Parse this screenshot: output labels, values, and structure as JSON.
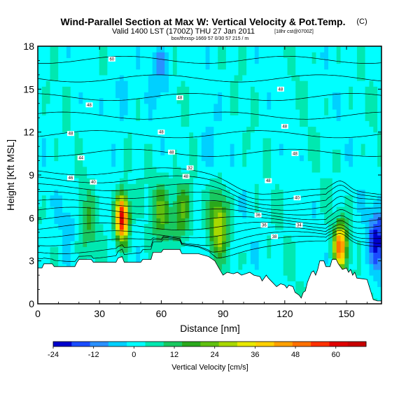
{
  "chart_data": {
    "type": "heatmap",
    "title": "Wind-Parallel Section at Max W: Vertical Velocity & Pot.Temp.",
    "title_symbol": "(C)",
    "subtitle": "Valid 1400 LST (1700Z) THU 27 Jan 2011",
    "subtitle_note": "[18hr cst@0700Z]",
    "small_line": "box/thrxsp-1669 57 0/30 57 215 / m",
    "xlabel": "Distance [nm]",
    "ylabel": "Height [Kft MSL]",
    "xlim": [
      0,
      167
    ],
    "ylim": [
      0,
      18
    ],
    "xticks": [
      0,
      30,
      60,
      90,
      120,
      150
    ],
    "yticks": [
      0,
      3,
      6,
      9,
      12,
      15,
      18
    ],
    "colorbar": {
      "label": "Vertical Velocity [cm/s]",
      "min": -24,
      "max": 69,
      "tick_values": [
        -24,
        -12,
        0,
        12,
        24,
        36,
        48,
        60
      ],
      "colors": [
        "#0000cc",
        "#1a4cff",
        "#2a90ff",
        "#00d0ff",
        "#00ffff",
        "#00e8b0",
        "#19c860",
        "#2aa81c",
        "#60c010",
        "#a8d800",
        "#e8e800",
        "#ffd000",
        "#ffa000",
        "#ff7000",
        "#ff3000",
        "#e00000",
        "#c80000"
      ]
    },
    "terrain_height": [
      [
        0,
        2.5
      ],
      [
        2,
        2.5
      ],
      [
        3,
        2.8
      ],
      [
        7,
        2.8
      ],
      [
        8,
        2.6
      ],
      [
        18,
        2.6
      ],
      [
        19,
        2.9
      ],
      [
        20,
        3.1
      ],
      [
        26,
        3.1
      ],
      [
        27,
        2.9
      ],
      [
        38,
        2.9
      ],
      [
        39,
        3.2
      ],
      [
        41,
        3.3
      ],
      [
        42,
        2.9
      ],
      [
        50,
        2.9
      ],
      [
        51,
        3.1
      ],
      [
        55,
        3.1
      ],
      [
        56,
        3.6
      ],
      [
        60,
        3.6
      ],
      [
        61,
        3.8
      ],
      [
        69,
        3.8
      ],
      [
        70,
        3.5
      ],
      [
        78,
        3.5
      ],
      [
        83,
        3.3
      ],
      [
        86,
        3.0
      ],
      [
        88,
        2.5
      ],
      [
        90,
        2.0
      ],
      [
        92,
        2.2
      ],
      [
        95,
        2.1
      ],
      [
        97,
        2.2
      ],
      [
        99,
        2.0
      ],
      [
        103,
        2.2
      ],
      [
        105,
        2.0
      ],
      [
        108,
        1.9
      ],
      [
        109,
        1.6
      ],
      [
        111,
        2.0
      ],
      [
        112,
        1.8
      ],
      [
        114,
        1.5
      ],
      [
        116,
        1.2
      ],
      [
        118,
        1.4
      ],
      [
        120,
        1.3
      ],
      [
        121,
        1.1
      ],
      [
        122,
        1.3
      ],
      [
        124,
        1.2
      ],
      [
        125,
        0.8
      ],
      [
        127,
        0.6
      ],
      [
        128,
        0.4
      ],
      [
        129,
        0.8
      ],
      [
        130,
        0.9
      ],
      [
        131,
        1.5
      ],
      [
        133,
        2.2
      ],
      [
        134,
        2.3
      ],
      [
        135,
        2.0
      ],
      [
        136,
        2.4
      ],
      [
        137,
        3.0
      ],
      [
        139,
        3.0
      ],
      [
        140,
        2.6
      ],
      [
        142,
        2.6
      ],
      [
        143,
        3.1
      ],
      [
        145,
        3.1
      ],
      [
        146,
        2.8
      ],
      [
        148,
        2.4
      ],
      [
        150,
        2.5
      ],
      [
        151,
        2.2
      ],
      [
        152,
        2.4
      ],
      [
        153,
        2.0
      ],
      [
        154,
        2.2
      ],
      [
        155,
        1.8
      ],
      [
        160,
        1.7
      ],
      [
        163,
        0.3
      ],
      [
        165,
        0.2
      ],
      [
        167,
        0.2
      ]
    ],
    "updraft_cores_cm_s": [
      {
        "distance": 41,
        "height": 6.0,
        "peak": 65
      },
      {
        "distance": 147,
        "height": 4.0,
        "peak": 48
      },
      {
        "distance": 60,
        "height": 6.5,
        "peak": 18
      },
      {
        "distance": 70,
        "height": 6.5,
        "peak": 20
      },
      {
        "distance": 88,
        "height": 5.5,
        "peak": 28
      },
      {
        "distance": 24,
        "height": 5.5,
        "peak": 12
      }
    ],
    "downdraft_cores_cm_s": [
      {
        "distance": 40,
        "height": 14.5,
        "peak": -8
      },
      {
        "distance": 60,
        "height": 16.5,
        "peak": -10
      },
      {
        "distance": 82,
        "height": 11.0,
        "peak": -6
      },
      {
        "distance": 165,
        "height": 4.5,
        "peak": -20
      },
      {
        "distance": 15,
        "height": 6.0,
        "peak": -5
      }
    ],
    "theta_contour_labels": [
      {
        "text": "60",
        "distance": 36,
        "height": 17.1
      },
      {
        "text": "48",
        "distance": 25,
        "height": 13.9
      },
      {
        "text": "48",
        "distance": 69,
        "height": 14.4
      },
      {
        "text": "48",
        "distance": 120,
        "height": 12.4
      },
      {
        "text": "48",
        "distance": 118,
        "height": 15.0
      },
      {
        "text": "48",
        "distance": 16,
        "height": 11.9
      },
      {
        "text": "48",
        "distance": 60,
        "height": 12.0
      },
      {
        "text": "44",
        "distance": 21,
        "height": 10.2
      },
      {
        "text": "48",
        "distance": 65,
        "height": 10.6
      },
      {
        "text": "48",
        "distance": 125,
        "height": 10.5
      },
      {
        "text": "46",
        "distance": 16,
        "height": 8.8
      },
      {
        "text": "40",
        "distance": 27,
        "height": 8.5
      },
      {
        "text": "32",
        "distance": 74,
        "height": 9.5
      },
      {
        "text": "48",
        "distance": 72,
        "height": 8.9
      },
      {
        "text": "48",
        "distance": 112,
        "height": 8.6
      },
      {
        "text": "40",
        "distance": 126,
        "height": 7.4
      },
      {
        "text": "36",
        "distance": 107,
        "height": 6.2
      },
      {
        "text": "36",
        "distance": 110,
        "height": 5.5
      },
      {
        "text": "38",
        "distance": 115,
        "height": 4.7
      },
      {
        "text": "34",
        "distance": 127,
        "height": 5.5
      }
    ]
  }
}
